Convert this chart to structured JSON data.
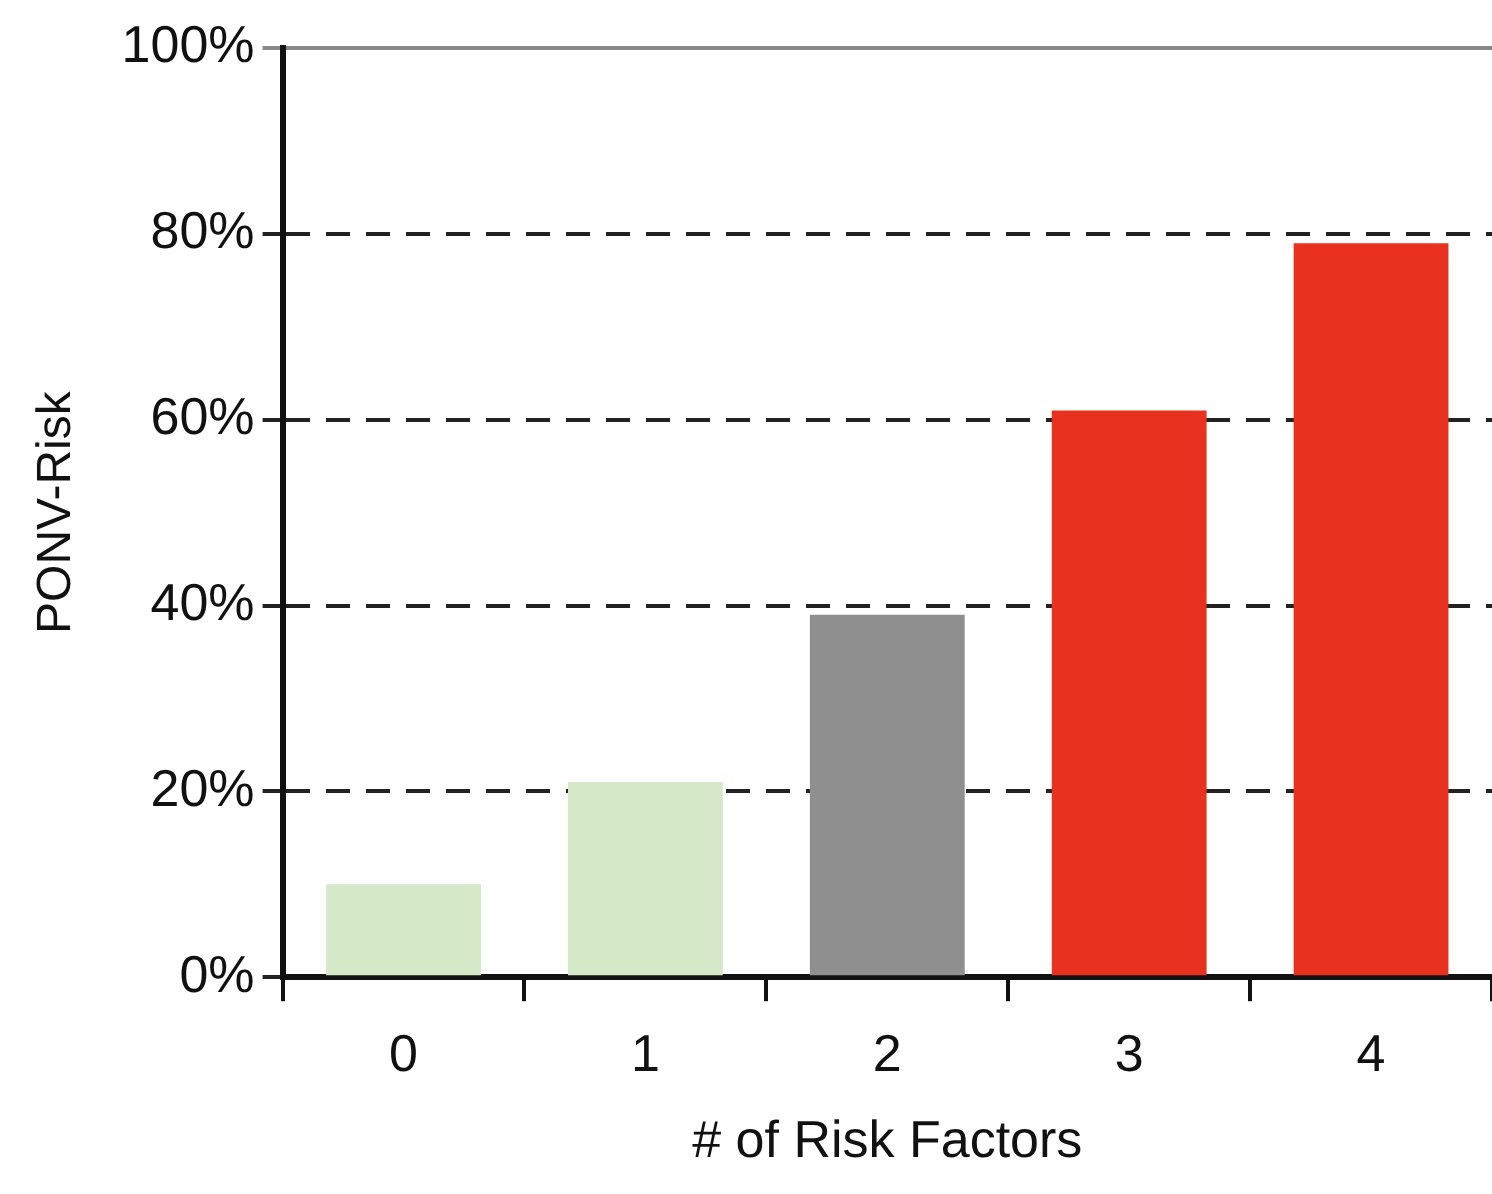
{
  "chart_data": {
    "type": "bar",
    "xlabel": "# of Risk Factors",
    "ylabel": "PONV-Risk",
    "categories": [
      "0",
      "1",
      "2",
      "3",
      "4"
    ],
    "values": [
      10,
      21,
      39,
      61,
      79
    ],
    "colors": [
      "#d5e8c8",
      "#d5e8c8",
      "#8f8f8f",
      "#e8321f",
      "#e8321f"
    ],
    "ylim": [
      0,
      100
    ],
    "yticks": [
      {
        "value": 0,
        "label": "0%"
      },
      {
        "value": 20,
        "label": "20%"
      },
      {
        "value": 40,
        "label": "40%"
      },
      {
        "value": 60,
        "label": "60%"
      },
      {
        "value": 80,
        "label": "80%"
      },
      {
        "value": 100,
        "label": "100%"
      }
    ],
    "grid": "y",
    "line_style": "dashed",
    "legend": false
  }
}
